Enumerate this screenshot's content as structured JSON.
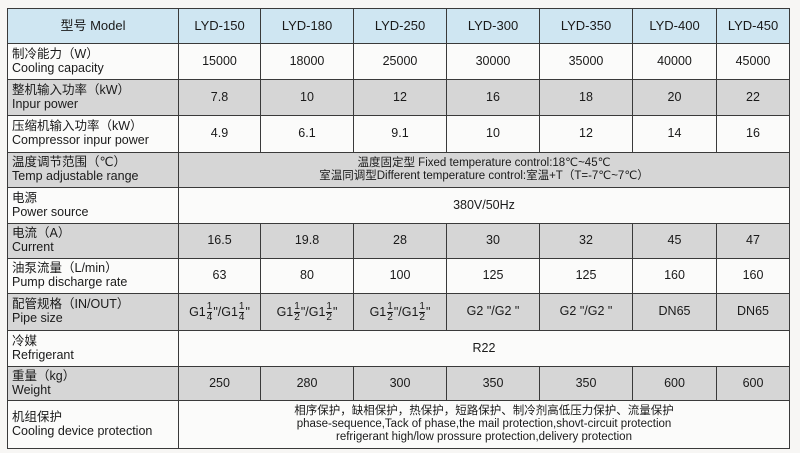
{
  "header": {
    "label": "型号 Model",
    "models": [
      "LYD-150",
      "LYD-180",
      "LYD-250",
      "LYD-300",
      "LYD-350",
      "LYD-400",
      "LYD-450"
    ]
  },
  "rows": [
    {
      "cn": "制冷能力（W）",
      "en": "Cooling capacity",
      "values": [
        "15000",
        "18000",
        "25000",
        "30000",
        "35000",
        "40000",
        "45000"
      ],
      "shade": "white"
    },
    {
      "cn": "整机输入功率（kW）",
      "en": "Inpur power",
      "values": [
        "7.8",
        "10",
        "12",
        "16",
        "18",
        "20",
        "22"
      ],
      "shade": "gray"
    },
    {
      "cn": "压缩机输入功率（kW）",
      "en": "Compressor inpur power",
      "values": [
        "4.9",
        "6.1",
        "9.1",
        "10",
        "12",
        "14",
        "16"
      ],
      "shade": "white"
    },
    {
      "cn": "温度调节范围（℃）",
      "en": "Temp adjustable range",
      "merged": [
        "温度固定型 Fixed temperature control:18℃~45℃",
        "室温同调型Different temperature control:室温+T（T=-7℃~7℃）"
      ],
      "shade": "gray"
    },
    {
      "cn": "电源",
      "en": "Power source",
      "merged": [
        "380V/50Hz"
      ],
      "shade": "white"
    },
    {
      "cn": "电流（A）",
      "en": "Current",
      "values": [
        "16.5",
        "19.8",
        "28",
        "30",
        "32",
        "45",
        "47"
      ],
      "shade": "gray"
    },
    {
      "cn": "油泵流量（L/min）",
      "en": "Pump discharge rate",
      "values": [
        "63",
        "80",
        "100",
        "125",
        "125",
        "160",
        "160"
      ],
      "shade": "white"
    },
    {
      "cn": "配管规格（IN/OUT）",
      "en": "Pipe size",
      "pipe": [
        [
          "G1",
          [
            "1",
            "4"
          ],
          "\"/G1",
          [
            "1",
            "4"
          ],
          "\""
        ],
        [
          "G1",
          [
            "1",
            "2"
          ],
          "\"/G1",
          [
            "1",
            "2"
          ],
          "\""
        ],
        [
          "G1",
          [
            "1",
            "2"
          ],
          "\"/G1",
          [
            "1",
            "2"
          ],
          "\""
        ],
        [
          "G2 \"/G2 \""
        ],
        [
          "G2 \"/G2 \""
        ],
        [
          "DN65"
        ],
        [
          "DN65"
        ]
      ],
      "shade": "gray"
    },
    {
      "cn": "冷媒",
      "en": "Refrigerant",
      "merged": [
        "R22"
      ],
      "shade": "white"
    },
    {
      "cn": "重量（kg）",
      "en": "Weight",
      "values": [
        "250",
        "280",
        "300",
        "350",
        "350",
        "600",
        "600"
      ],
      "shade": "gray"
    },
    {
      "cn": "机组保护",
      "en": "Cooling device protection",
      "merged": [
        "相序保护，缺相保护，热保护，短路保护、制冷剂高低压力保护、流量保护",
        "phase-sequence,Tack of phase,the mail protection,shovt-circuit protection",
        "refrigerant high/low prossure protection,delivery protection"
      ],
      "shade": "white"
    }
  ]
}
